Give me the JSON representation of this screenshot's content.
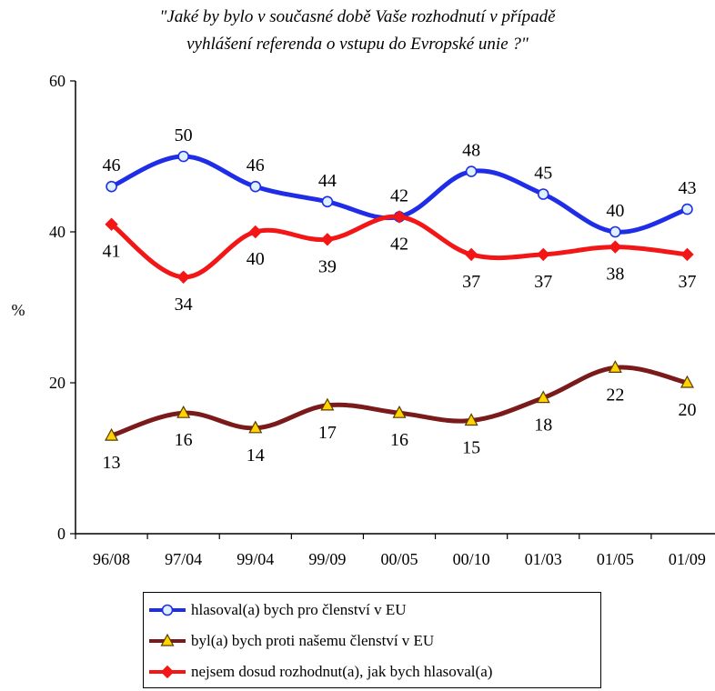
{
  "chart_data": {
    "type": "line",
    "title": "\"Jaké by bylo v současné době Vaše rozhodnutí v případě",
    "subtitle": "vyhlášení referenda o vstupu do Evropské unie ?\"",
    "ylabel": "%",
    "xlabel": "",
    "ylim": [
      0,
      60
    ],
    "yticks": [
      0,
      20,
      40,
      60
    ],
    "grid": false,
    "legend_position": "bottom",
    "categories": [
      "96/08",
      "97/04",
      "99/04",
      "99/09",
      "00/05",
      "00/10",
      "01/03",
      "01/05",
      "01/09"
    ],
    "series": [
      {
        "name": "hlasoval(a) bych pro členství v EU",
        "color": "#1f2ee6",
        "marker": "circle",
        "values": [
          46,
          50,
          46,
          44,
          42,
          48,
          45,
          40,
          43
        ],
        "label_position": "above"
      },
      {
        "name": "byl(a) bych proti našemu členství v EU",
        "color": "#7a1a1a",
        "marker": "triangle",
        "values": [
          13,
          16,
          14,
          17,
          16,
          15,
          18,
          22,
          20
        ],
        "label_position": "below"
      },
      {
        "name": "nejsem dosud rozhodnut(a), jak bych hlasoval(a)",
        "color": "#f21616",
        "marker": "diamond",
        "values": [
          41,
          34,
          40,
          39,
          42,
          37,
          37,
          38,
          37
        ],
        "label_position": "below"
      }
    ]
  }
}
